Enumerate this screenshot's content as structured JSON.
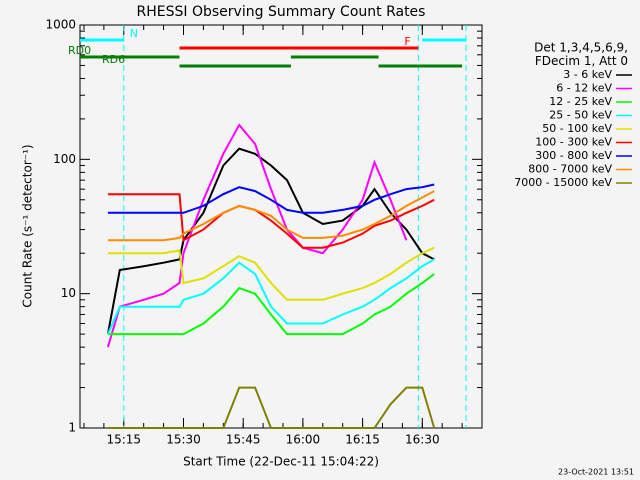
{
  "chart_data": {
    "type": "line",
    "title": "RHESSI Observing Summary Count Rates",
    "x_label": "Start Time (22-Dec-11 15:04:22)",
    "y_label": "Count Rate (s⁻¹ detector⁻¹)",
    "log_y": true,
    "xlim": [
      "15:04",
      "16:45"
    ],
    "xticks": [
      "15:15",
      "15:30",
      "15:45",
      "16:00",
      "16:15",
      "16:30"
    ],
    "ylim": [
      1,
      1000
    ],
    "yticks": [
      1,
      10,
      100,
      1000
    ],
    "legend_header": [
      "Det 1,3,4,5,6,9,",
      "FDecim 1, Att 0"
    ],
    "legend_position": "right",
    "footer": "23-Oct-2021 13:51",
    "x": [
      "15:11",
      "15:14",
      "15:20",
      "15:25",
      "15:29",
      "15:30",
      "15:35",
      "15:40",
      "15:44",
      "15:48",
      "15:52",
      "15:56",
      "16:00",
      "16:05",
      "16:10",
      "16:15",
      "16:18",
      "16:22",
      "16:26",
      "16:30",
      "16:33"
    ],
    "series": [
      {
        "name": "3 - 6 keV",
        "color": "#000000",
        "values": [
          5,
          15,
          16,
          17,
          18,
          25,
          40,
          90,
          120,
          110,
          90,
          70,
          40,
          33,
          35,
          45,
          60,
          40,
          30,
          20,
          18
        ]
      },
      {
        "name": "6 - 12 keV",
        "color": "#ff00ff",
        "values": [
          4,
          8,
          9,
          10,
          12,
          20,
          50,
          110,
          180,
          130,
          60,
          30,
          22,
          20,
          30,
          50,
          95,
          50,
          25,
          null,
          null
        ]
      },
      {
        "name": "12 - 25 keV",
        "color": "#00ff00",
        "values": [
          5,
          5,
          5,
          5,
          5,
          5,
          6,
          8,
          11,
          10,
          7,
          5,
          5,
          5,
          5,
          6,
          7,
          8,
          10,
          12,
          14
        ]
      },
      {
        "name": "25 - 50 keV",
        "color": "#00ffff",
        "values": [
          5,
          8,
          8,
          8,
          8,
          9,
          10,
          13,
          17,
          14,
          8,
          6,
          6,
          6,
          7,
          8,
          9,
          11,
          13,
          16,
          18
        ]
      },
      {
        "name": "50 - 100 keV",
        "color": "#e0e000",
        "values": [
          20,
          20,
          20,
          20,
          21,
          12,
          13,
          16,
          19,
          17,
          12,
          9,
          9,
          9,
          10,
          11,
          12,
          14,
          17,
          20,
          22
        ]
      },
      {
        "name": "100 - 300 keV",
        "color": "#ff0000",
        "values": [
          55,
          55,
          55,
          55,
          55,
          25,
          30,
          40,
          45,
          42,
          35,
          28,
          22,
          22,
          24,
          28,
          32,
          35,
          40,
          45,
          50
        ]
      },
      {
        "name": "300 - 800 keV",
        "color": "#0000ff",
        "values": [
          40,
          40,
          40,
          40,
          40,
          40,
          45,
          55,
          62,
          58,
          50,
          42,
          40,
          40,
          42,
          45,
          50,
          55,
          60,
          62,
          65
        ]
      },
      {
        "name": "800 - 7000 keV",
        "color": "#ff8c00",
        "values": [
          25,
          25,
          25,
          25,
          26,
          28,
          33,
          40,
          45,
          42,
          38,
          30,
          26,
          26,
          27,
          30,
          33,
          38,
          45,
          52,
          58
        ]
      },
      {
        "name": "7000 - 15000 keV",
        "color": "#808000",
        "values": [
          1,
          1,
          1,
          1,
          1,
          1,
          1,
          1,
          2,
          2,
          1,
          1,
          1,
          1,
          1,
          1,
          1,
          1.5,
          2,
          2,
          1
        ]
      }
    ],
    "flags": [
      {
        "label": "N",
        "color": "#00ffff",
        "segments": [
          [
            "15:04",
            "15:15"
          ],
          [
            "16:30",
            "16:41"
          ]
        ]
      },
      {
        "label": "F",
        "color": "#ff0000",
        "segments": [
          [
            "15:29",
            "16:29"
          ]
        ]
      },
      {
        "label": "RD0",
        "color": "#008000",
        "segments": [
          [
            "15:04",
            "15:29"
          ],
          [
            "15:57",
            "16:19"
          ]
        ]
      },
      {
        "label": "RD6",
        "color": "#008000",
        "segments": [
          [
            "15:29",
            "15:57"
          ],
          [
            "16:19",
            "16:40"
          ]
        ]
      }
    ],
    "vlines": {
      "color": "#00ffff",
      "x": [
        "15:15",
        "16:29",
        "16:41"
      ]
    }
  }
}
